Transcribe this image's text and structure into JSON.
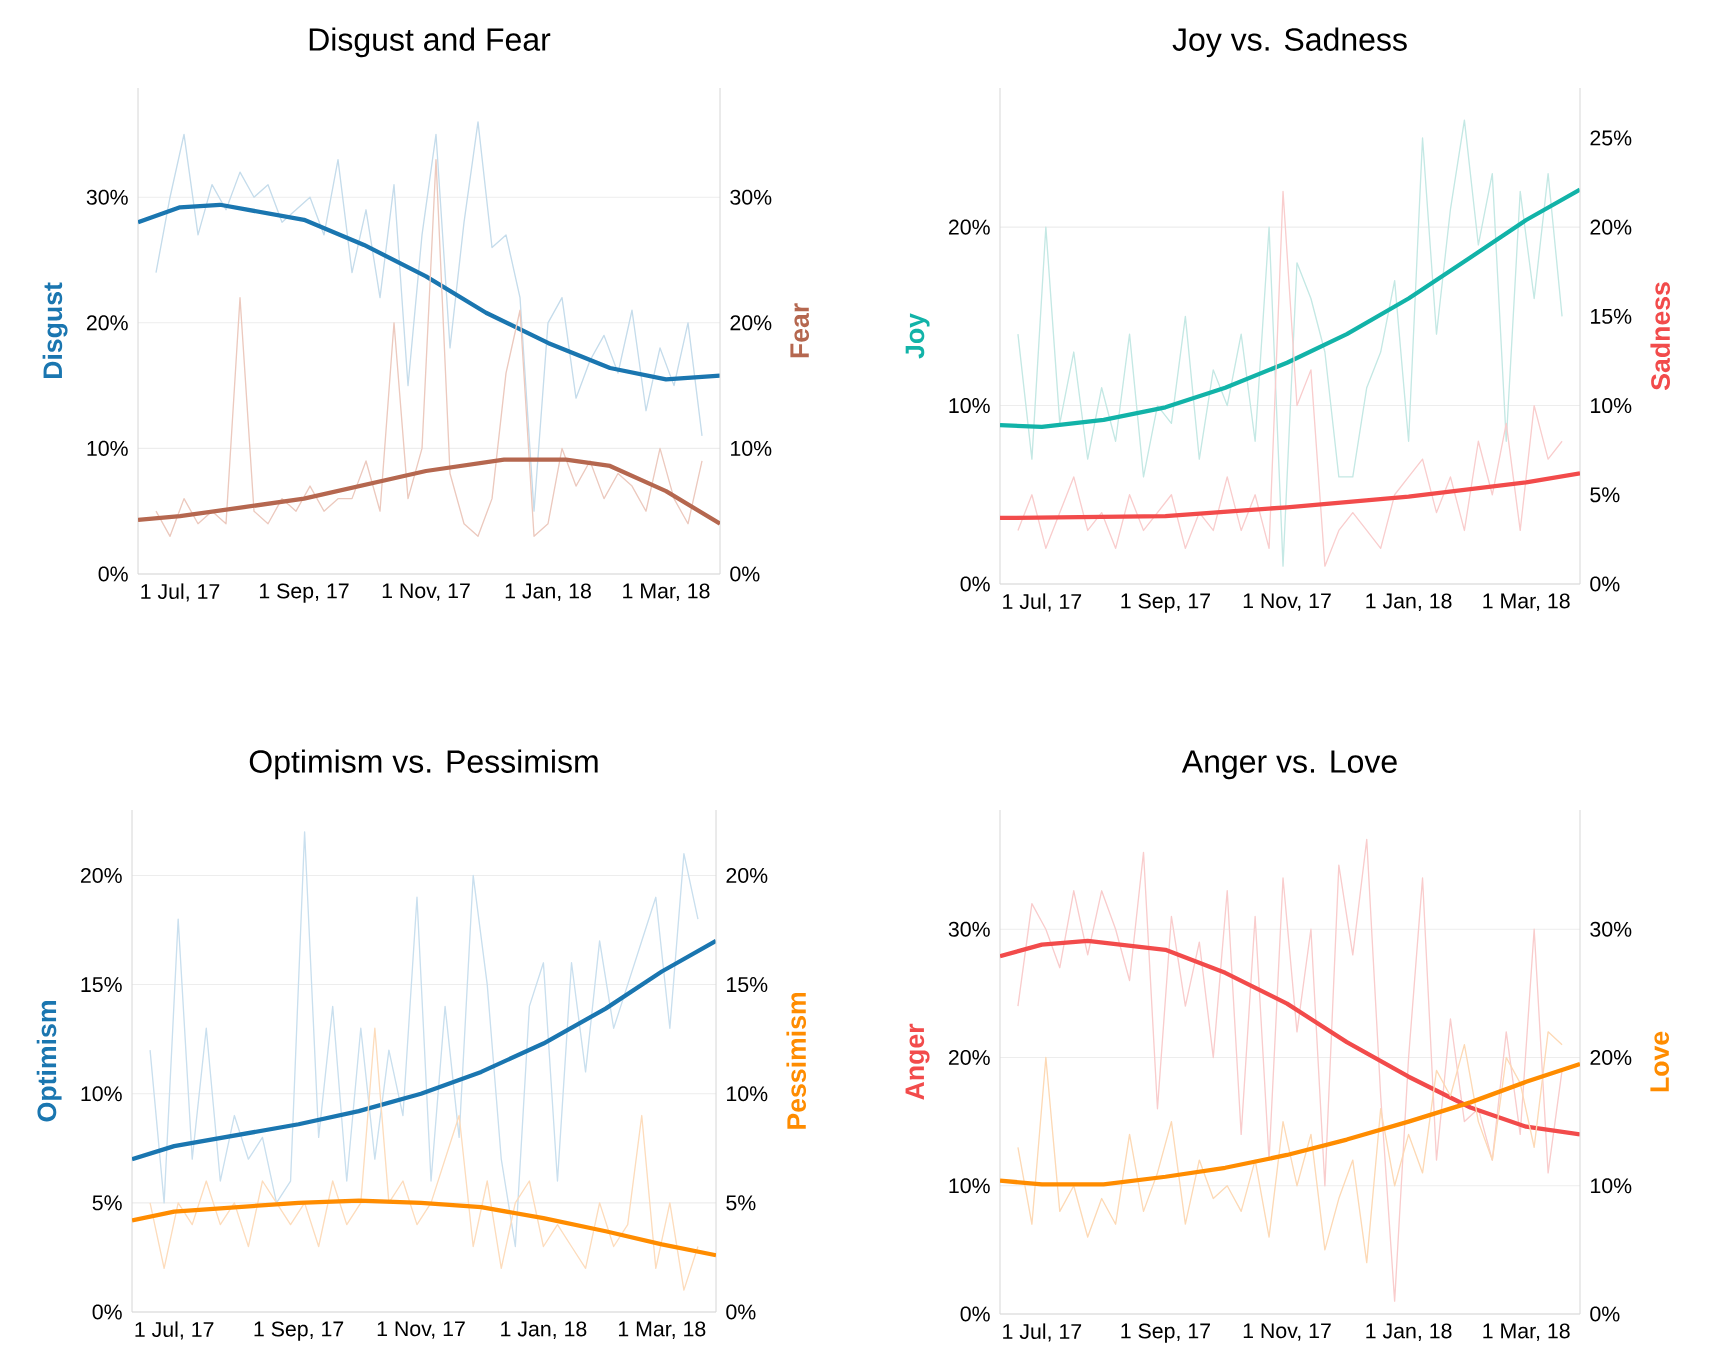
{
  "chart_data": [
    {
      "type": "line",
      "title": "Disgust and Fear",
      "ylabel": "Disgust",
      "y2label": "Fear",
      "x": [
        "2017-06-19",
        "2017-06-26",
        "2017-07-03",
        "2017-07-10",
        "2017-07-17",
        "2017-07-24",
        "2017-07-31",
        "2017-08-07",
        "2017-08-14",
        "2017-08-21",
        "2017-08-28",
        "2017-09-04",
        "2017-09-11",
        "2017-09-18",
        "2017-09-25",
        "2017-10-02",
        "2017-10-09",
        "2017-10-16",
        "2017-10-23",
        "2017-10-30",
        "2017-11-06",
        "2017-11-13",
        "2017-11-20",
        "2017-11-27",
        "2017-12-04",
        "2017-12-11",
        "2017-12-18",
        "2017-12-25",
        "2018-01-01",
        "2018-01-08",
        "2018-01-15",
        "2018-01-22",
        "2018-01-29",
        "2018-02-05",
        "2018-02-12",
        "2018-02-19",
        "2018-02-26",
        "2018-03-05",
        "2018-03-12",
        "2018-03-19"
      ],
      "series": [
        {
          "color": "#c5dceb",
          "values": [
            24,
            30,
            35,
            27,
            31,
            29,
            32,
            30,
            31,
            28,
            29,
            30,
            27,
            33,
            24,
            29,
            22,
            31,
            15,
            27,
            35,
            18,
            28,
            36,
            26,
            27,
            22,
            5,
            20,
            22,
            14,
            17,
            19,
            16,
            21,
            13,
            18,
            15,
            20,
            11
          ]
        },
        {
          "axis": "y2",
          "color": "#ecc9be",
          "values": [
            5,
            3,
            6,
            4,
            5,
            4,
            22,
            5,
            4,
            6,
            5,
            7,
            5,
            6,
            6,
            9,
            5,
            20,
            6,
            10,
            33,
            8,
            4,
            3,
            6,
            16,
            21,
            3,
            4,
            10,
            7,
            9,
            6,
            8,
            7,
            5,
            10,
            6,
            4,
            9
          ]
        },
        {
          "color": "#1a76b0",
          "x": [
            "2017-06-10",
            "2017-07-01",
            "2017-07-21",
            "2017-09-01",
            "2017-10-01",
            "2017-11-01",
            "2017-12-01",
            "2018-01-01",
            "2018-02-01",
            "2018-03-01",
            "2018-03-28"
          ],
          "values": [
            28.0,
            29.2,
            29.4,
            28.2,
            26.2,
            23.7,
            20.8,
            18.4,
            16.4,
            15.5,
            15.8
          ]
        },
        {
          "axis": "y2",
          "color": "#b5674f",
          "x": [
            "2017-06-10",
            "2017-07-01",
            "2017-09-01",
            "2017-11-01",
            "2017-12-10",
            "2018-01-10",
            "2018-02-01",
            "2018-03-01",
            "2018-03-28"
          ],
          "values": [
            4.3,
            4.6,
            6.0,
            8.2,
            9.1,
            9.1,
            8.6,
            6.6,
            4.0
          ]
        }
      ],
      "xlim": [
        "2017-06-10",
        "2018-03-28"
      ],
      "xticks": [
        {
          "value": "2017-07-01",
          "label": "1 Jul, 17"
        },
        {
          "value": "2017-09-01",
          "label": "1 Sep, 17"
        },
        {
          "value": "2017-11-01",
          "label": "1 Nov, 17"
        },
        {
          "value": "2018-01-01",
          "label": "1 Jan, 18"
        },
        {
          "value": "2018-03-01",
          "label": "1 Mar, 18"
        }
      ],
      "ylim": [
        0,
        38.7
      ],
      "yticks": [
        {
          "value": 0,
          "label": "0%"
        },
        {
          "value": 10,
          "label": "10%"
        },
        {
          "value": 20,
          "label": "20%"
        },
        {
          "value": 30,
          "label": "30%"
        }
      ],
      "y2lim": [
        0,
        38.7
      ],
      "y2ticks": [
        {
          "value": 0,
          "label": "0%"
        },
        {
          "value": 10,
          "label": "10%"
        },
        {
          "value": 20,
          "label": "20%"
        },
        {
          "value": 30,
          "label": "30%"
        }
      ],
      "grid": "y"
    },
    {
      "type": "line",
      "title": "Joy vs. Sadness",
      "ylabel": "Joy",
      "y2label": "Sadness",
      "x": [
        "2017-06-19",
        "2017-06-26",
        "2017-07-03",
        "2017-07-10",
        "2017-07-17",
        "2017-07-24",
        "2017-07-31",
        "2017-08-07",
        "2017-08-14",
        "2017-08-21",
        "2017-08-28",
        "2017-09-04",
        "2017-09-11",
        "2017-09-18",
        "2017-09-25",
        "2017-10-02",
        "2017-10-09",
        "2017-10-16",
        "2017-10-23",
        "2017-10-30",
        "2017-11-06",
        "2017-11-13",
        "2017-11-20",
        "2017-11-27",
        "2017-12-04",
        "2017-12-11",
        "2017-12-18",
        "2017-12-25",
        "2018-01-01",
        "2018-01-08",
        "2018-01-15",
        "2018-01-22",
        "2018-01-29",
        "2018-02-05",
        "2018-02-12",
        "2018-02-19",
        "2018-02-26",
        "2018-03-05",
        "2018-03-12",
        "2018-03-19"
      ],
      "series": [
        {
          "color": "#c4e8e4",
          "values": [
            14,
            7,
            20,
            9,
            13,
            7,
            11,
            8,
            14,
            6,
            10,
            9,
            15,
            7,
            12,
            10,
            14,
            8,
            20,
            1,
            18,
            16,
            13,
            6,
            6,
            11,
            13,
            17,
            8,
            25,
            14,
            21,
            26,
            19,
            23,
            8,
            22,
            16,
            23,
            15
          ]
        },
        {
          "axis": "y2",
          "color": "#f9cdcd",
          "values": [
            3,
            5,
            2,
            4,
            6,
            3,
            4,
            2,
            5,
            3,
            4,
            5,
            2,
            4,
            3,
            6,
            3,
            5,
            2,
            22,
            10,
            12,
            1,
            3,
            4,
            3,
            2,
            5,
            6,
            7,
            4,
            6,
            3,
            8,
            5,
            9,
            3,
            10,
            7,
            8
          ]
        },
        {
          "color": "#12b3a8",
          "x": [
            "2017-06-10",
            "2017-07-01",
            "2017-08-01",
            "2017-09-01",
            "2017-10-01",
            "2017-11-01",
            "2017-12-01",
            "2018-01-01",
            "2018-02-01",
            "2018-03-01",
            "2018-03-28"
          ],
          "values": [
            8.9,
            8.8,
            9.2,
            9.9,
            11.0,
            12.4,
            14.0,
            16.0,
            18.3,
            20.4,
            22.1
          ]
        },
        {
          "axis": "y2",
          "color": "#f24b4b",
          "x": [
            "2017-06-10",
            "2017-09-01",
            "2017-11-01",
            "2018-01-01",
            "2018-03-01",
            "2018-03-28"
          ],
          "values": [
            3.7,
            3.8,
            4.3,
            4.9,
            5.7,
            6.2
          ]
        }
      ],
      "xlim": [
        "2017-06-10",
        "2018-03-28"
      ],
      "xticks": [
        {
          "value": "2017-07-01",
          "label": "1 Jul, 17"
        },
        {
          "value": "2017-09-01",
          "label": "1 Sep, 17"
        },
        {
          "value": "2017-11-01",
          "label": "1 Nov, 17"
        },
        {
          "value": "2018-01-01",
          "label": "1 Jan, 18"
        },
        {
          "value": "2018-03-01",
          "label": "1 Mar, 18"
        }
      ],
      "ylim": [
        0,
        27.8
      ],
      "yticks": [
        {
          "value": 0,
          "label": "0%"
        },
        {
          "value": 10,
          "label": "10%"
        },
        {
          "value": 20,
          "label": "20%"
        }
      ],
      "y2lim": [
        0,
        27.8
      ],
      "y2ticks": [
        {
          "value": 0,
          "label": "0%"
        },
        {
          "value": 5,
          "label": "5%"
        },
        {
          "value": 10,
          "label": "10%"
        },
        {
          "value": 15,
          "label": "15%"
        },
        {
          "value": 20,
          "label": "20%"
        },
        {
          "value": 25,
          "label": "25%"
        }
      ],
      "grid": "y"
    },
    {
      "type": "line",
      "title": "Optimism vs. Pessimism",
      "ylabel": "Optimism",
      "y2label": "Pessimism",
      "x": [
        "2017-06-19",
        "2017-06-26",
        "2017-07-03",
        "2017-07-10",
        "2017-07-17",
        "2017-07-24",
        "2017-07-31",
        "2017-08-07",
        "2017-08-14",
        "2017-08-21",
        "2017-08-28",
        "2017-09-04",
        "2017-09-11",
        "2017-09-18",
        "2017-09-25",
        "2017-10-02",
        "2017-10-09",
        "2017-10-16",
        "2017-10-23",
        "2017-10-30",
        "2017-11-06",
        "2017-11-13",
        "2017-11-20",
        "2017-11-27",
        "2017-12-04",
        "2017-12-11",
        "2017-12-18",
        "2017-12-25",
        "2018-01-01",
        "2018-01-08",
        "2018-01-15",
        "2018-01-22",
        "2018-01-29",
        "2018-02-05",
        "2018-02-12",
        "2018-02-19",
        "2018-02-26",
        "2018-03-05",
        "2018-03-12",
        "2018-03-19"
      ],
      "series": [
        {
          "color": "#c9dfee",
          "values": [
            12,
            5,
            18,
            7,
            13,
            6,
            9,
            7,
            8,
            5,
            6,
            22,
            8,
            14,
            6,
            13,
            7,
            12,
            9,
            19,
            6,
            14,
            8,
            20,
            15,
            7,
            3,
            14,
            16,
            6,
            16,
            11,
            17,
            13,
            15,
            17,
            19,
            13,
            21,
            18
          ]
        },
        {
          "axis": "y2",
          "color": "#fddcbc",
          "values": [
            5,
            2,
            5,
            4,
            6,
            4,
            5,
            3,
            6,
            5,
            4,
            5,
            3,
            6,
            4,
            5,
            13,
            5,
            6,
            4,
            5,
            7,
            9,
            3,
            6,
            2,
            5,
            6,
            3,
            4,
            3,
            2,
            5,
            3,
            4,
            9,
            2,
            5,
            1,
            3
          ]
        },
        {
          "color": "#1a76b0",
          "x": [
            "2017-06-10",
            "2017-07-01",
            "2017-09-01",
            "2017-10-01",
            "2017-11-01",
            "2017-12-01",
            "2018-01-01",
            "2018-02-01",
            "2018-03-01",
            "2018-03-28"
          ],
          "values": [
            7.0,
            7.6,
            8.6,
            9.2,
            10.0,
            11.0,
            12.3,
            13.9,
            15.6,
            17.0
          ]
        },
        {
          "axis": "y2",
          "color": "#ff8c00",
          "x": [
            "2017-06-10",
            "2017-07-01",
            "2017-09-01",
            "2017-10-01",
            "2017-11-01",
            "2017-12-01",
            "2018-01-01",
            "2018-02-01",
            "2018-03-01",
            "2018-03-28"
          ],
          "values": [
            4.2,
            4.6,
            5.0,
            5.1,
            5.0,
            4.8,
            4.3,
            3.7,
            3.1,
            2.6
          ]
        }
      ],
      "xlim": [
        "2017-06-10",
        "2018-03-28"
      ],
      "xticks": [
        {
          "value": "2017-07-01",
          "label": "1 Jul, 17"
        },
        {
          "value": "2017-09-01",
          "label": "1 Sep, 17"
        },
        {
          "value": "2017-11-01",
          "label": "1 Nov, 17"
        },
        {
          "value": "2018-01-01",
          "label": "1 Jan, 18"
        },
        {
          "value": "2018-03-01",
          "label": "1 Mar, 18"
        }
      ],
      "ylim": [
        0,
        23.0
      ],
      "yticks": [
        {
          "value": 0,
          "label": "0%"
        },
        {
          "value": 5,
          "label": "5%"
        },
        {
          "value": 10,
          "label": "10%"
        },
        {
          "value": 15,
          "label": "15%"
        },
        {
          "value": 20,
          "label": "20%"
        }
      ],
      "y2lim": [
        0,
        23.0
      ],
      "y2ticks": [
        {
          "value": 0,
          "label": "0%"
        },
        {
          "value": 5,
          "label": "5%"
        },
        {
          "value": 10,
          "label": "10%"
        },
        {
          "value": 15,
          "label": "15%"
        },
        {
          "value": 20,
          "label": "20%"
        }
      ],
      "grid": "y"
    },
    {
      "type": "line",
      "title": "Anger vs. Love",
      "ylabel": "Anger",
      "y2label": "Love",
      "x": [
        "2017-06-19",
        "2017-06-26",
        "2017-07-03",
        "2017-07-10",
        "2017-07-17",
        "2017-07-24",
        "2017-07-31",
        "2017-08-07",
        "2017-08-14",
        "2017-08-21",
        "2017-08-28",
        "2017-09-04",
        "2017-09-11",
        "2017-09-18",
        "2017-09-25",
        "2017-10-02",
        "2017-10-09",
        "2017-10-16",
        "2017-10-23",
        "2017-10-30",
        "2017-11-06",
        "2017-11-13",
        "2017-11-20",
        "2017-11-27",
        "2017-12-04",
        "2017-12-11",
        "2017-12-18",
        "2017-12-25",
        "2018-01-01",
        "2018-01-08",
        "2018-01-15",
        "2018-01-22",
        "2018-01-29",
        "2018-02-05",
        "2018-02-12",
        "2018-02-19",
        "2018-02-26",
        "2018-03-05",
        "2018-03-12",
        "2018-03-19"
      ],
      "series": [
        {
          "color": "#f9cccc",
          "values": [
            24,
            32,
            30,
            27,
            33,
            28,
            33,
            30,
            26,
            36,
            16,
            31,
            24,
            29,
            20,
            33,
            14,
            31,
            12,
            34,
            22,
            30,
            10,
            35,
            28,
            37,
            17,
            1,
            20,
            34,
            12,
            23,
            15,
            16,
            12,
            22,
            14,
            30,
            11,
            19
          ]
        },
        {
          "axis": "y2",
          "color": "#fdd9b5",
          "values": [
            13,
            7,
            20,
            8,
            10,
            6,
            9,
            7,
            14,
            8,
            11,
            15,
            7,
            12,
            9,
            10,
            8,
            12,
            6,
            15,
            10,
            14,
            5,
            9,
            12,
            4,
            16,
            10,
            14,
            11,
            19,
            17,
            21,
            15,
            12,
            20,
            18,
            13,
            22,
            21
          ]
        },
        {
          "color": "#f24b4b",
          "x": [
            "2017-06-10",
            "2017-07-01",
            "2017-07-24",
            "2017-09-01",
            "2017-10-01",
            "2017-11-01",
            "2017-12-01",
            "2018-01-01",
            "2018-02-01",
            "2018-03-01",
            "2018-03-28"
          ],
          "values": [
            27.9,
            28.8,
            29.1,
            28.4,
            26.6,
            24.2,
            21.2,
            18.5,
            16.1,
            14.6,
            14.0
          ]
        },
        {
          "axis": "y2",
          "color": "#ff8c00",
          "x": [
            "2017-06-10",
            "2017-07-01",
            "2017-08-01",
            "2017-09-01",
            "2017-10-01",
            "2017-11-01",
            "2017-12-01",
            "2018-01-01",
            "2018-02-01",
            "2018-03-01",
            "2018-03-28"
          ],
          "values": [
            10.4,
            10.1,
            10.1,
            10.7,
            11.4,
            12.4,
            13.6,
            15.0,
            16.5,
            18.1,
            19.5
          ]
        }
      ],
      "xlim": [
        "2017-06-10",
        "2018-03-28"
      ],
      "xticks": [
        {
          "value": "2017-07-01",
          "label": "1 Jul, 17"
        },
        {
          "value": "2017-09-01",
          "label": "1 Sep, 17"
        },
        {
          "value": "2017-11-01",
          "label": "1 Nov, 17"
        },
        {
          "value": "2018-01-01",
          "label": "1 Jan, 18"
        },
        {
          "value": "2018-03-01",
          "label": "1 Mar, 18"
        }
      ],
      "ylim": [
        0,
        39.3
      ],
      "yticks": [
        {
          "value": 0,
          "label": "0%"
        },
        {
          "value": 10,
          "label": "10%"
        },
        {
          "value": 20,
          "label": "20%"
        },
        {
          "value": 30,
          "label": "30%"
        }
      ],
      "y2lim": [
        0,
        39.3
      ],
      "y2ticks": [
        {
          "value": 0,
          "label": "0%"
        },
        {
          "value": 10,
          "label": "10%"
        },
        {
          "value": 20,
          "label": "20%"
        },
        {
          "value": 30,
          "label": "30%"
        }
      ],
      "grid": "y"
    }
  ]
}
